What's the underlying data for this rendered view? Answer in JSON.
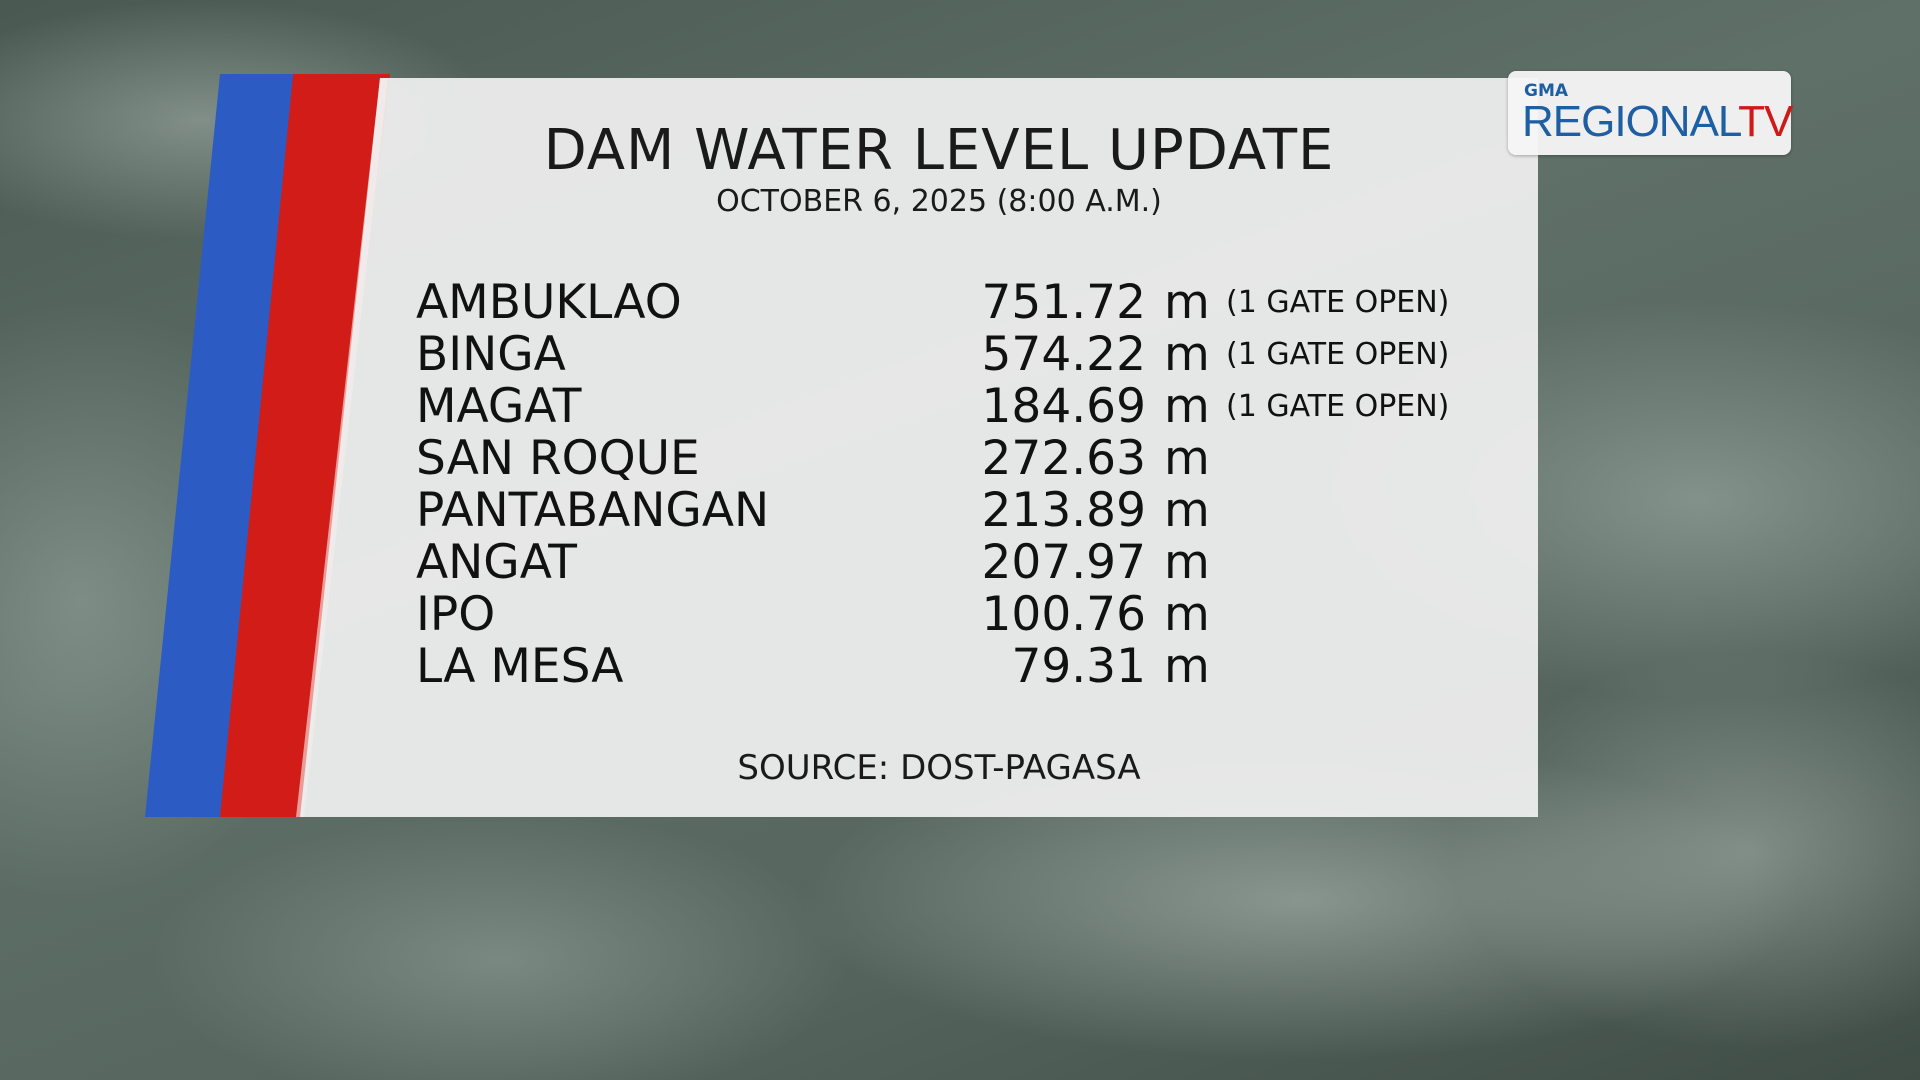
{
  "title": "DAM WATER LEVEL UPDATE",
  "date": "OCTOBER 6, 2025 (8:00 A.M.)",
  "dams": [
    {
      "name": "AMBUKLAO",
      "level": "751.72",
      "unit": "m",
      "note": "(1 GATE OPEN)"
    },
    {
      "name": "BINGA",
      "level": "574.22",
      "unit": "m",
      "note": "(1 GATE OPEN)"
    },
    {
      "name": "MAGAT",
      "level": "184.69",
      "unit": "m",
      "note": "(1 GATE OPEN)"
    },
    {
      "name": "SAN ROQUE",
      "level": "272.63",
      "unit": "m",
      "note": ""
    },
    {
      "name": "PANTABANGAN",
      "level": "213.89",
      "unit": "m",
      "note": ""
    },
    {
      "name": "ANGAT",
      "level": "207.97",
      "unit": "m",
      "note": ""
    },
    {
      "name": "IPO",
      "level": "100.76",
      "unit": "m",
      "note": ""
    },
    {
      "name": "LA MESA",
      "level": "79.31",
      "unit": "m",
      "note": ""
    }
  ],
  "source": "SOURCE: DOST-PAGASA",
  "logo": {
    "top": "GMA",
    "main": "REGIONAL",
    "accent": "TV"
  },
  "colors": {
    "blue_stripe": "#2d5bc4",
    "red_stripe": "#d11c17",
    "logo_blue": "#1e5fa3",
    "logo_red": "#d01818"
  }
}
